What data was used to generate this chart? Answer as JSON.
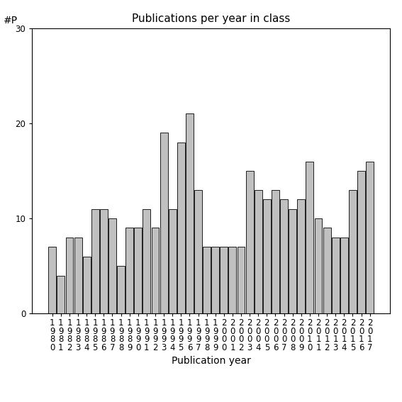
{
  "title": "Publications per year in class",
  "xlabel": "Publication year",
  "ylabel": "#P",
  "ylim": [
    0,
    30
  ],
  "yticks": [
    0,
    10,
    20,
    30
  ],
  "years": [
    1980,
    1981,
    1982,
    1983,
    1984,
    1985,
    1986,
    1987,
    1988,
    1989,
    1990,
    1991,
    1992,
    1993,
    1994,
    1995,
    1996,
    1997,
    1998,
    1999,
    2000,
    2001,
    2002,
    2003,
    2004,
    2005,
    2006,
    2007,
    2008,
    2009,
    2010,
    2011,
    2012,
    2013,
    2014,
    2015,
    2016,
    2017
  ],
  "values": [
    7,
    4,
    8,
    8,
    6,
    11,
    11,
    10,
    5,
    9,
    9,
    11,
    9,
    19,
    11,
    18,
    21,
    13,
    7,
    7,
    7,
    7,
    7,
    15,
    13,
    12,
    13,
    12,
    11,
    12,
    16,
    10,
    9,
    8,
    8,
    13,
    15,
    16
  ],
  "bar_color": "#c0c0c0",
  "bar_edge_color": "#000000",
  "bg_color": "#ffffff",
  "title_fontsize": 11,
  "label_fontsize": 10,
  "tick_fontsize": 8.5
}
